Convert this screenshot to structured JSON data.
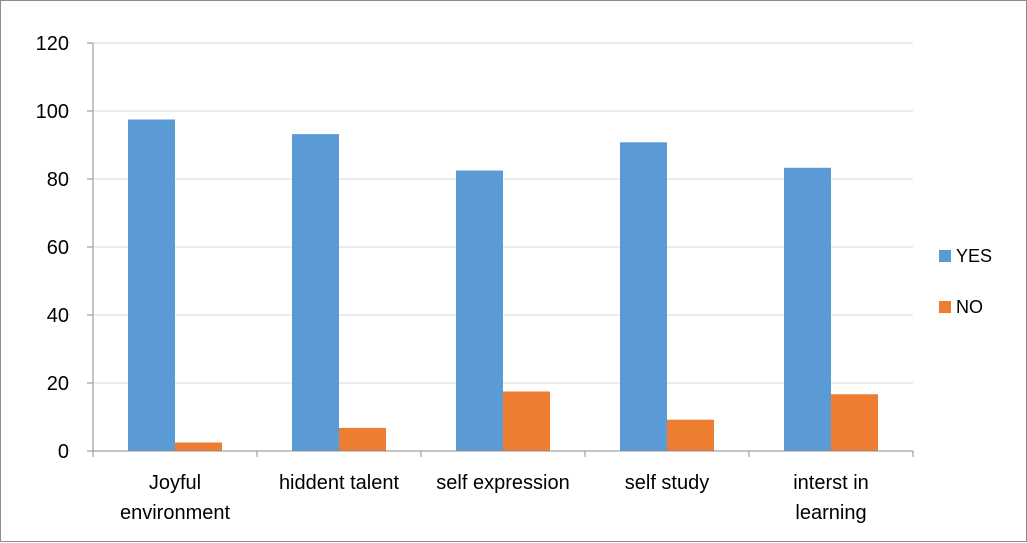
{
  "chart_data": {
    "type": "bar",
    "categories": [
      [
        "Joyful",
        "environment"
      ],
      [
        "hiddent talent"
      ],
      [
        "self expression"
      ],
      [
        "self study"
      ],
      [
        "interst in",
        "learning"
      ]
    ],
    "series": [
      {
        "name": "YES",
        "color": "#5b9bd5",
        "values": [
          97.5,
          93.2,
          82.5,
          90.8,
          83.3
        ]
      },
      {
        "name": "NO",
        "color": "#ed7d31",
        "values": [
          2.5,
          6.8,
          17.5,
          9.2,
          16.7
        ]
      }
    ],
    "ylim": [
      0,
      120
    ],
    "yticks": [
      0,
      20,
      40,
      60,
      80,
      100,
      120
    ],
    "grid": true,
    "legend_position": "right"
  }
}
